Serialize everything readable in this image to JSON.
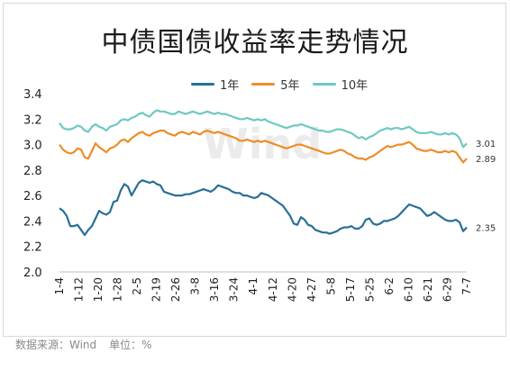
{
  "title": "中债国债收益率走势情况",
  "watermark": "Wind",
  "footer": {
    "source": "数据来源：Wind",
    "unit": "单位：%"
  },
  "chart_data": {
    "type": "line",
    "ylim": [
      2.0,
      3.4
    ],
    "yticks": [
      "3.4",
      "3.2",
      "3.0",
      "2.8",
      "2.6",
      "2.4",
      "2.2",
      "2.0"
    ],
    "x_tick_labels": [
      "1-4",
      "1-12",
      "1-20",
      "1-28",
      "2-5",
      "2-19",
      "2-26",
      "3-8",
      "3-16",
      "3-24",
      "4-1",
      "4-12",
      "4-20",
      "4-27",
      "5-8",
      "5-17",
      "5-25",
      "6-2",
      "6-10",
      "6-21",
      "6-29",
      "7-7"
    ],
    "grid": false,
    "legend": "top-center",
    "series": [
      {
        "name": "1年",
        "color": "#2a6f97",
        "end_label": "2.35",
        "values": [
          2.5,
          2.48,
          2.44,
          2.36,
          2.36,
          2.37,
          2.33,
          2.29,
          2.33,
          2.36,
          2.42,
          2.48,
          2.46,
          2.45,
          2.47,
          2.55,
          2.56,
          2.64,
          2.69,
          2.67,
          2.6,
          2.65,
          2.7,
          2.72,
          2.71,
          2.7,
          2.71,
          2.69,
          2.68,
          2.63,
          2.62,
          2.61,
          2.6,
          2.6,
          2.6,
          2.61,
          2.61,
          2.62,
          2.63,
          2.64,
          2.65,
          2.64,
          2.63,
          2.65,
          2.68,
          2.67,
          2.66,
          2.65,
          2.63,
          2.62,
          2.62,
          2.6,
          2.6,
          2.59,
          2.58,
          2.59,
          2.62,
          2.61,
          2.6,
          2.58,
          2.56,
          2.54,
          2.52,
          2.48,
          2.44,
          2.38,
          2.37,
          2.43,
          2.41,
          2.37,
          2.36,
          2.33,
          2.32,
          2.31,
          2.31,
          2.3,
          2.31,
          2.32,
          2.34,
          2.35,
          2.35,
          2.36,
          2.34,
          2.34,
          2.36,
          2.41,
          2.42,
          2.38,
          2.37,
          2.38,
          2.4,
          2.4,
          2.41,
          2.42,
          2.44,
          2.47,
          2.5,
          2.53,
          2.52,
          2.51,
          2.5,
          2.47,
          2.44,
          2.45,
          2.47,
          2.45,
          2.43,
          2.41,
          2.4,
          2.4,
          2.41,
          2.39,
          2.32,
          2.35
        ]
      },
      {
        "name": "5年",
        "color": "#ee8d29",
        "end_label": "2.89",
        "values": [
          3.0,
          2.96,
          2.94,
          2.93,
          2.94,
          2.97,
          2.96,
          2.9,
          2.89,
          2.95,
          3.01,
          2.98,
          2.96,
          2.94,
          2.97,
          2.98,
          3.0,
          3.03,
          3.04,
          3.02,
          3.05,
          3.07,
          3.09,
          3.1,
          3.08,
          3.07,
          3.09,
          3.1,
          3.11,
          3.11,
          3.09,
          3.08,
          3.07,
          3.09,
          3.1,
          3.09,
          3.08,
          3.1,
          3.09,
          3.08,
          3.1,
          3.11,
          3.1,
          3.09,
          3.1,
          3.09,
          3.08,
          3.07,
          3.06,
          3.05,
          3.03,
          3.03,
          3.04,
          3.03,
          3.02,
          3.03,
          3.02,
          3.03,
          3.02,
          3.01,
          3.0,
          2.99,
          2.98,
          2.97,
          2.98,
          2.99,
          3.0,
          3.0,
          2.99,
          2.98,
          2.97,
          2.96,
          2.95,
          2.94,
          2.93,
          2.93,
          2.94,
          2.95,
          2.96,
          2.95,
          2.93,
          2.92,
          2.9,
          2.89,
          2.89,
          2.88,
          2.9,
          2.91,
          2.93,
          2.95,
          2.97,
          2.99,
          2.98,
          2.99,
          3.0,
          3.0,
          3.01,
          3.02,
          3.0,
          2.97,
          2.96,
          2.95,
          2.95,
          2.96,
          2.95,
          2.94,
          2.94,
          2.95,
          2.94,
          2.95,
          2.94,
          2.9,
          2.86,
          2.89
        ]
      },
      {
        "name": "10年",
        "color": "#6ec9c2",
        "end_label": "3.01",
        "values": [
          3.17,
          3.13,
          3.12,
          3.12,
          3.13,
          3.15,
          3.14,
          3.11,
          3.1,
          3.14,
          3.16,
          3.14,
          3.13,
          3.11,
          3.14,
          3.15,
          3.16,
          3.19,
          3.2,
          3.19,
          3.21,
          3.22,
          3.24,
          3.25,
          3.23,
          3.22,
          3.25,
          3.27,
          3.26,
          3.26,
          3.25,
          3.24,
          3.24,
          3.26,
          3.25,
          3.24,
          3.25,
          3.26,
          3.25,
          3.24,
          3.25,
          3.26,
          3.25,
          3.24,
          3.25,
          3.24,
          3.24,
          3.23,
          3.22,
          3.21,
          3.2,
          3.2,
          3.21,
          3.2,
          3.19,
          3.2,
          3.19,
          3.2,
          3.18,
          3.17,
          3.16,
          3.15,
          3.14,
          3.13,
          3.14,
          3.15,
          3.15,
          3.16,
          3.15,
          3.14,
          3.13,
          3.12,
          3.11,
          3.11,
          3.1,
          3.1,
          3.11,
          3.12,
          3.12,
          3.11,
          3.1,
          3.09,
          3.07,
          3.05,
          3.06,
          3.04,
          3.06,
          3.07,
          3.09,
          3.11,
          3.12,
          3.13,
          3.12,
          3.13,
          3.13,
          3.12,
          3.13,
          3.14,
          3.12,
          3.1,
          3.09,
          3.09,
          3.09,
          3.1,
          3.09,
          3.08,
          3.08,
          3.09,
          3.08,
          3.09,
          3.08,
          3.05,
          2.98,
          3.01
        ]
      }
    ]
  }
}
